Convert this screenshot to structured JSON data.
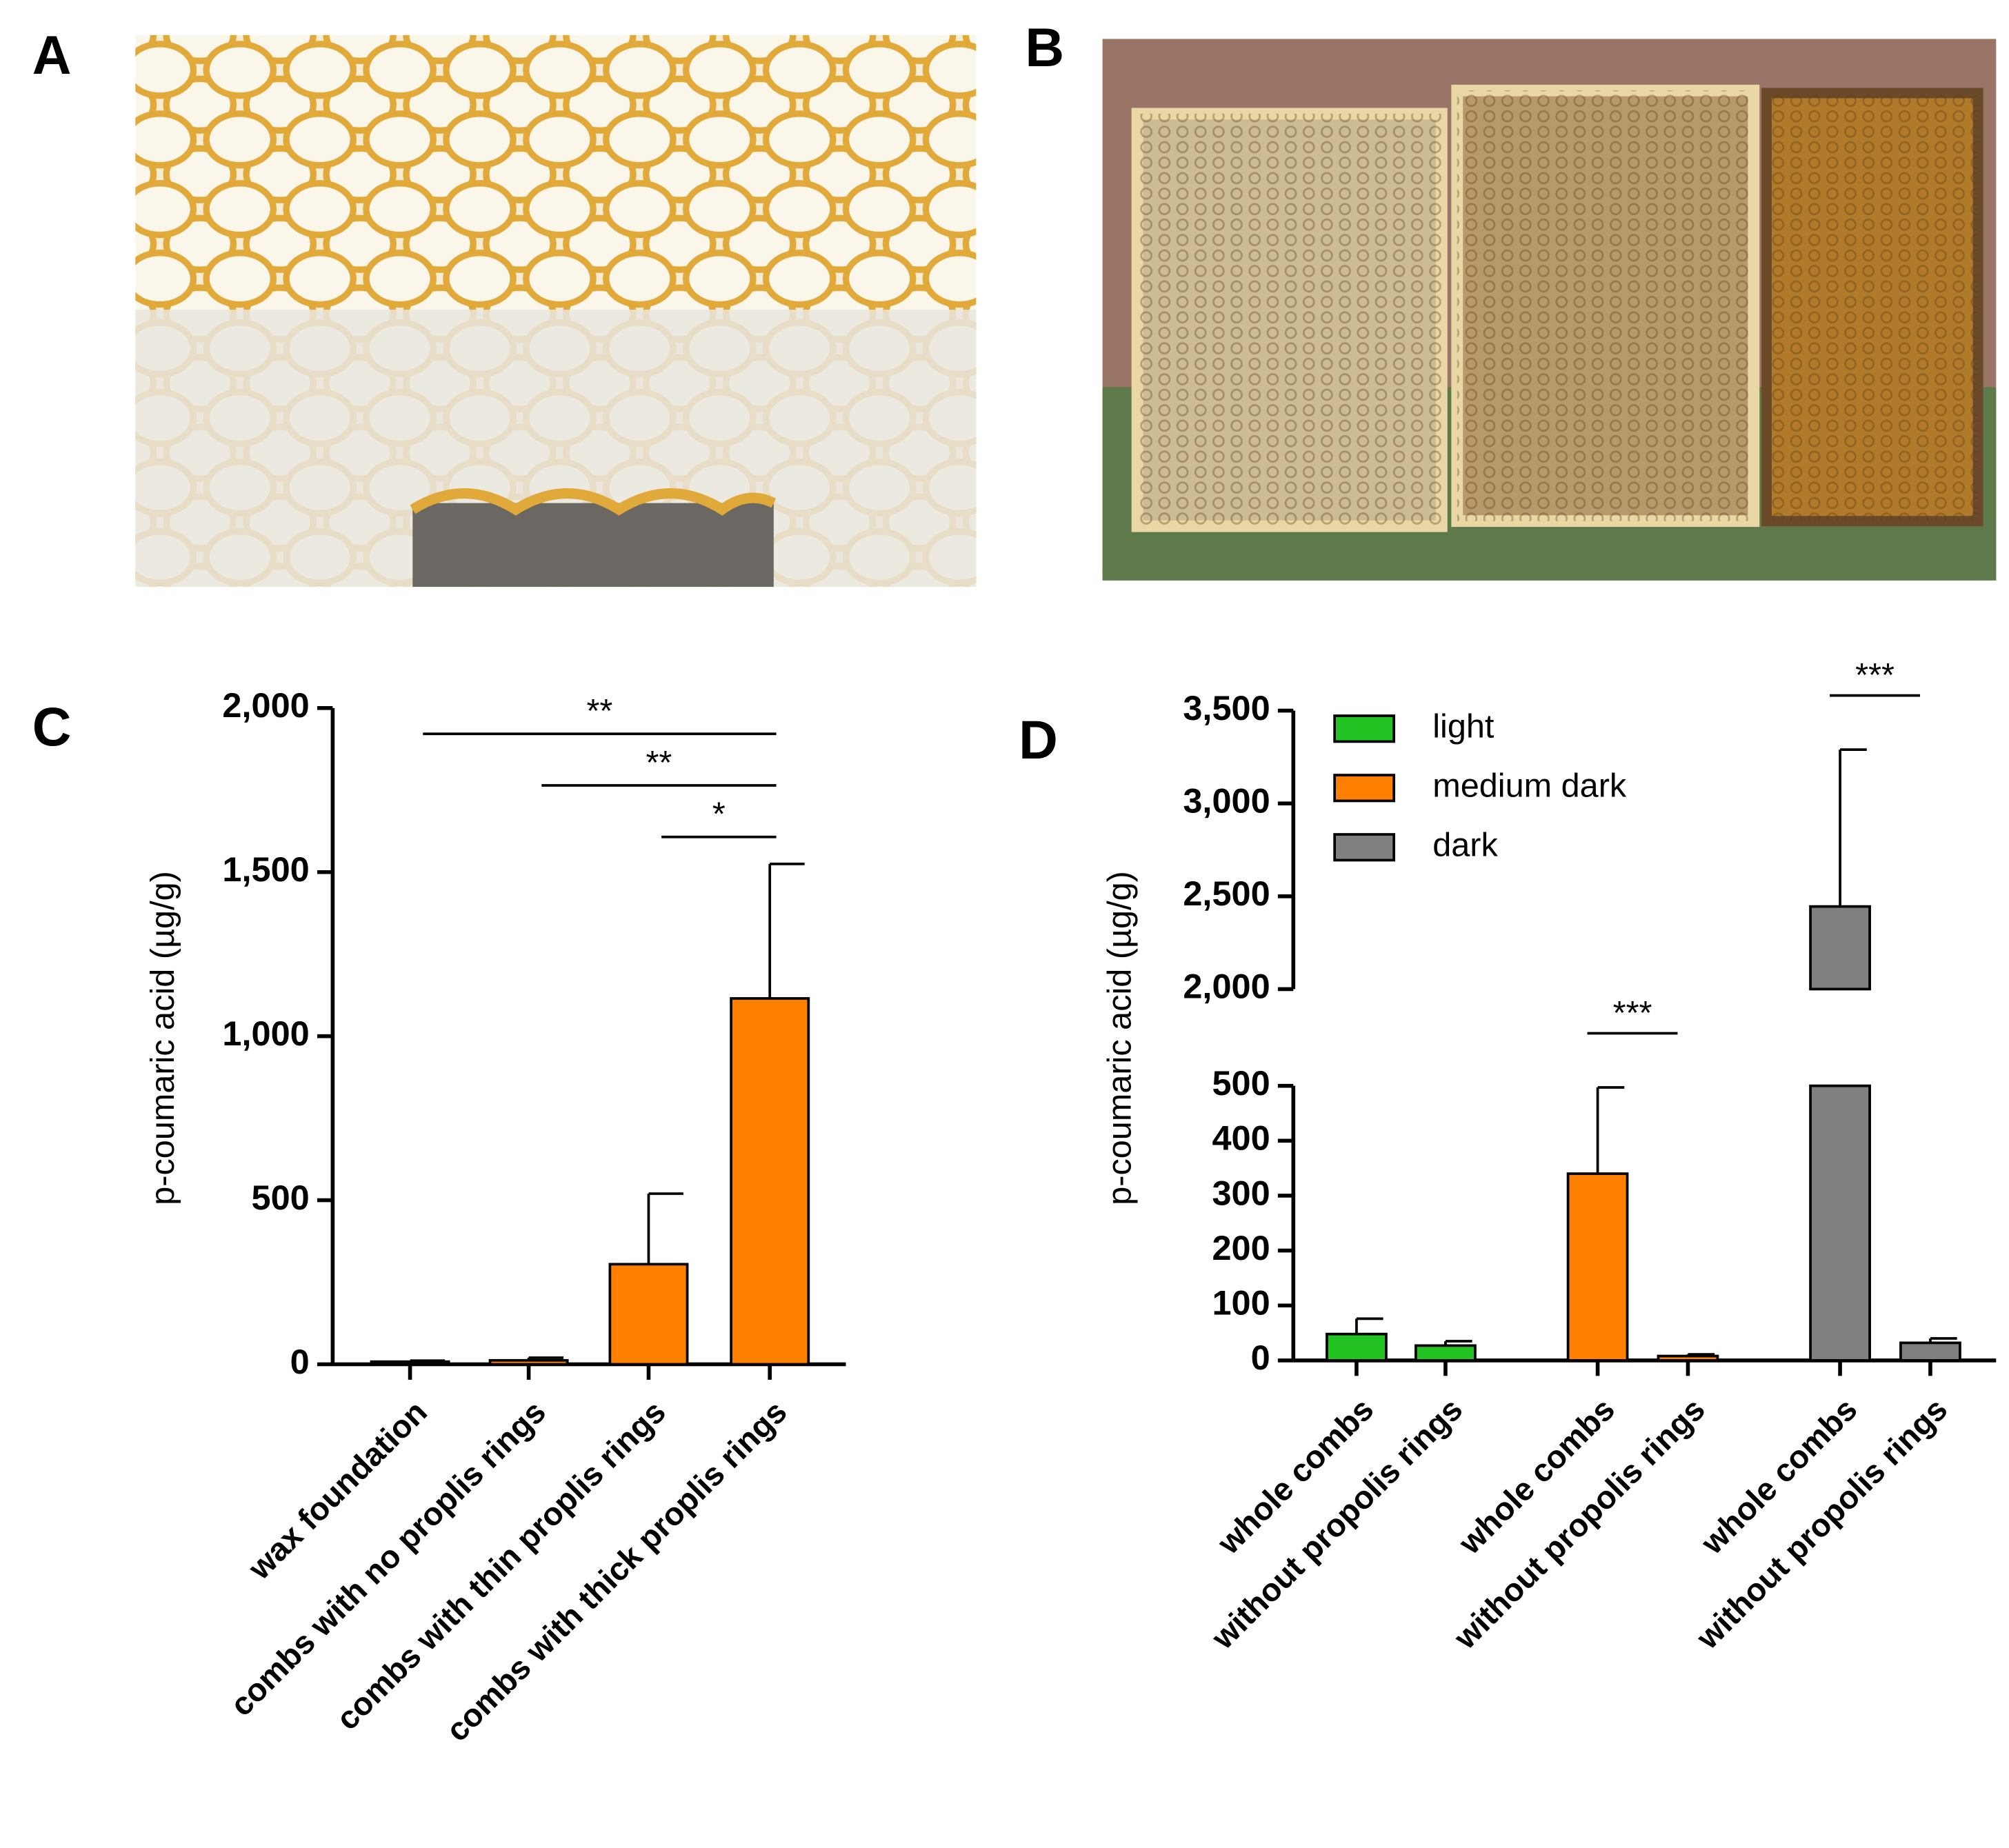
{
  "photo_panels": [
    {
      "label": "A"
    },
    {
      "label": "B"
    }
  ],
  "chart_data": [
    {
      "type": "bar",
      "panel_label": "C",
      "ylabel": "p-coumaric acid (µg/g)",
      "categories": [
        "wax foundation",
        "combs with no proplis rings",
        "combs with thin proplis rings",
        "combs with thick proplis rings"
      ],
      "values": [
        8,
        12,
        305,
        1115
      ],
      "errors": [
        3,
        8,
        215,
        410
      ],
      "color": "#ff8000",
      "ylim": [
        0,
        2000
      ],
      "yticks": [
        0,
        500,
        {
          "value": 1000,
          "label": "1,000"
        },
        {
          "value": 1500,
          "label": "1,500"
        },
        {
          "value": 2000,
          "label": "2,000"
        }
      ],
      "annotations": [
        {
          "text": "**",
          "from": "wax foundation",
          "to": "combs with thick proplis rings"
        },
        {
          "text": "**",
          "from": "combs with no proplis rings",
          "to": "combs with thick proplis rings"
        },
        {
          "text": "*",
          "from": "combs with thin proplis rings",
          "to": "combs with thick proplis rings"
        }
      ]
    },
    {
      "type": "bar",
      "panel_label": "D",
      "ylabel": "p-coumaric acid (µg/g)",
      "categories": [
        "whole combs",
        "without propolis rings",
        "whole combs",
        "without propolis rings",
        "whole combs",
        "without propolis rings"
      ],
      "series": [
        {
          "name": "light",
          "color": "#22c322",
          "values": [
            48,
            27,
            null,
            null,
            null,
            null
          ],
          "errors": [
            28,
            8,
            null,
            null,
            null,
            null
          ]
        },
        {
          "name": "medium dark",
          "color": "#ff8000",
          "values": [
            null,
            null,
            340,
            8,
            null,
            null
          ],
          "errors": [
            null,
            null,
            157,
            3,
            null,
            null
          ],
          "annotation": "***"
        },
        {
          "name": "dark",
          "color": "#808080",
          "values": [
            null,
            null,
            null,
            null,
            2445,
            32
          ],
          "errors": [
            null,
            null,
            null,
            null,
            845,
            8
          ],
          "annotation": "***"
        }
      ],
      "segments": [
        {
          "ylim": [
            0,
            500
          ],
          "yticks": [
            0,
            100,
            200,
            300,
            400,
            500
          ]
        },
        {
          "ylim": [
            2000,
            3500
          ],
          "yticks": [
            {
              "value": 2000,
              "label": "2,000"
            },
            {
              "value": 2500,
              "label": "2,500"
            },
            {
              "value": 3000,
              "label": "3,000"
            },
            {
              "value": 3500,
              "label": "3,500"
            }
          ]
        }
      ],
      "legend": "upper left"
    }
  ]
}
